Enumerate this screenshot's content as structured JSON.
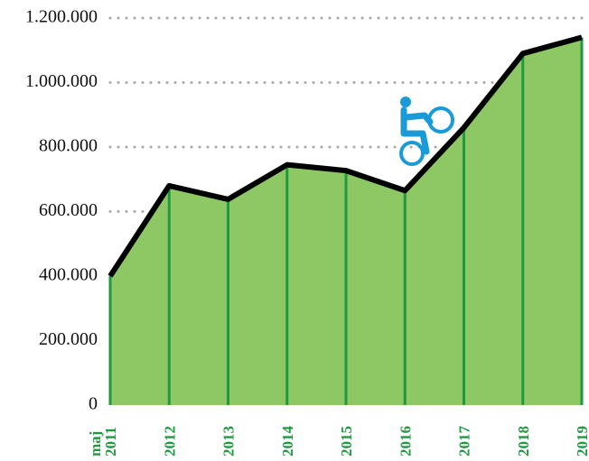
{
  "chart_data": {
    "type": "area",
    "categories": [
      "maj 2011",
      "2012",
      "2013",
      "2014",
      "2015",
      "2016",
      "2017",
      "2018",
      "2019"
    ],
    "values": [
      400000,
      680000,
      638000,
      745000,
      727000,
      665000,
      860000,
      1090000,
      1140000
    ],
    "color": "#8dc865",
    "line_color": "#000000",
    "drop_line_color": "#1f9a3f",
    "ylim": [
      0,
      1200000
    ],
    "yticks": [
      0,
      {
        "value": 200000,
        "label": "200.000"
      },
      {
        "value": 400000,
        "label": "400.000"
      },
      {
        "value": 600000,
        "label": "600.000"
      },
      {
        "value": 800000,
        "label": "800.000"
      },
      {
        "value": 1000000,
        "label": "1.000.000"
      },
      {
        "value": 1200000,
        "label": "1.200.000"
      }
    ],
    "grid": true
  }
}
